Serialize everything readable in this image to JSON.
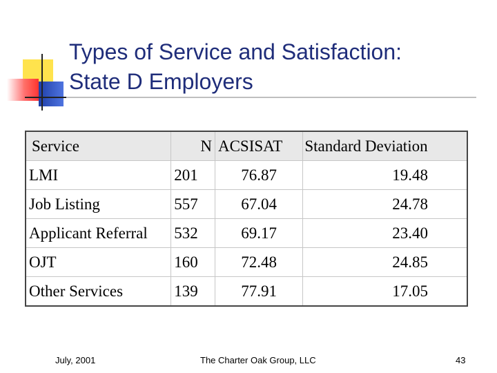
{
  "slide": {
    "title_line1": "Types of Service and Satisfaction:",
    "title_line2": "State D Employers"
  },
  "table": {
    "headers": [
      "Service",
      "N",
      "ACSISAT",
      "Standard Deviation"
    ],
    "rows": [
      [
        "LMI",
        "201",
        "76.87",
        "19.48"
      ],
      [
        "Job Listing",
        "557",
        "67.04",
        "24.78"
      ],
      [
        "Applicant Referral",
        "532",
        "69.17",
        "23.40"
      ],
      [
        "OJT",
        "160",
        "72.48",
        "24.85"
      ],
      [
        "Other Services",
        "139",
        "77.91",
        "17.05"
      ]
    ]
  },
  "footer": {
    "date": "July, 2001",
    "organization": "The Charter Oak Group, LLC",
    "page_number": "43"
  }
}
